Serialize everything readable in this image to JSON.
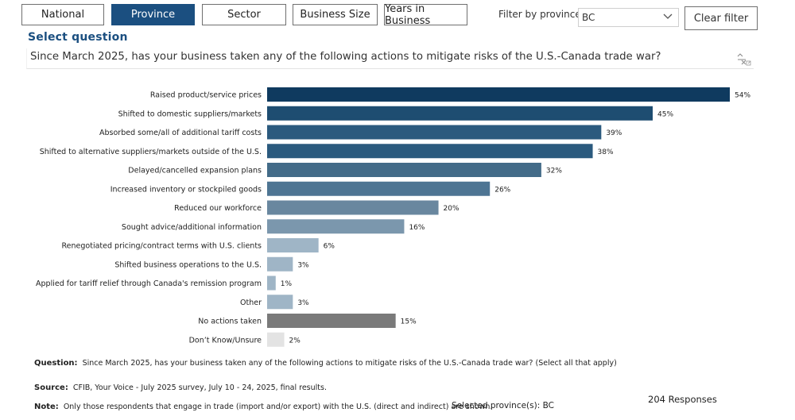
{
  "tabs": [
    {
      "label": "National",
      "active": false
    },
    {
      "label": "Province",
      "active": true
    },
    {
      "label": "Sector",
      "active": false
    },
    {
      "label": "Business Size",
      "active": false
    },
    {
      "label": "Years in Business",
      "active": false
    }
  ],
  "filter": {
    "label": "Filter by province",
    "selected": "BC",
    "clear_label": "Clear filter"
  },
  "select_question": {
    "title": "Select question",
    "value": "Since March 2025, has your business taken any of the following actions to mitigate risks of the U.S.-Canada trade war?"
  },
  "chart_data": {
    "type": "bar",
    "orientation": "horizontal",
    "categories": [
      "Raised product/service prices",
      "Shifted to domestic suppliers/markets",
      "Absorbed some/all of additional tariff costs",
      "Shifted to alternative suppliers/markets outside of the U.S.",
      "Delayed/cancelled expansion plans",
      "Increased inventory or stockpiled goods",
      "Reduced our workforce",
      "Sought advice/additional information",
      "Renegotiated pricing/contract terms with U.S. clients",
      "Shifted business operations to the U.S.",
      "Applied for tariff relief through Canada's remission program",
      "Other",
      "No actions taken",
      "Don’t Know/Unsure"
    ],
    "values": [
      54,
      45,
      39,
      38,
      32,
      26,
      20,
      16,
      6,
      3,
      1,
      3,
      15,
      2
    ],
    "value_labels": [
      "54%",
      "45%",
      "39%",
      "38%",
      "32%",
      "26%",
      "20%",
      "16%",
      "6%",
      "3%",
      "1%",
      "3%",
      "15%",
      "2%"
    ],
    "colors": [
      "#0f3a5f",
      "#1e4d71",
      "#2b5a7e",
      "#2b5a7e",
      "#436b88",
      "#4e7593",
      "#69879f",
      "#7b97ad",
      "#9fb5c6",
      "#9fb5c6",
      "#9fb5c6",
      "#9fb5c6",
      "#7a7a7a",
      "#e3e3e3"
    ],
    "xlim": [
      0,
      54
    ],
    "title": "",
    "xlabel": "",
    "ylabel": ""
  },
  "footer": {
    "question_label": "Question:",
    "question_text": "Since March 2025, has your business taken any of the following actions to mitigate risks of the U.S.-Canada trade war? (Select all that apply)",
    "source_label": "Source:",
    "source_text": "CFIB, Your Voice - July 2025 survey, July 10 - 24, 2025, final results.",
    "note_label": "Note:",
    "note_text": "Only those respondents that engage in trade (import and/or export) with the U.S. (direct and indirect) are shown.",
    "selected_province": "Selected province(s): BC",
    "responses": "204 Responses"
  }
}
